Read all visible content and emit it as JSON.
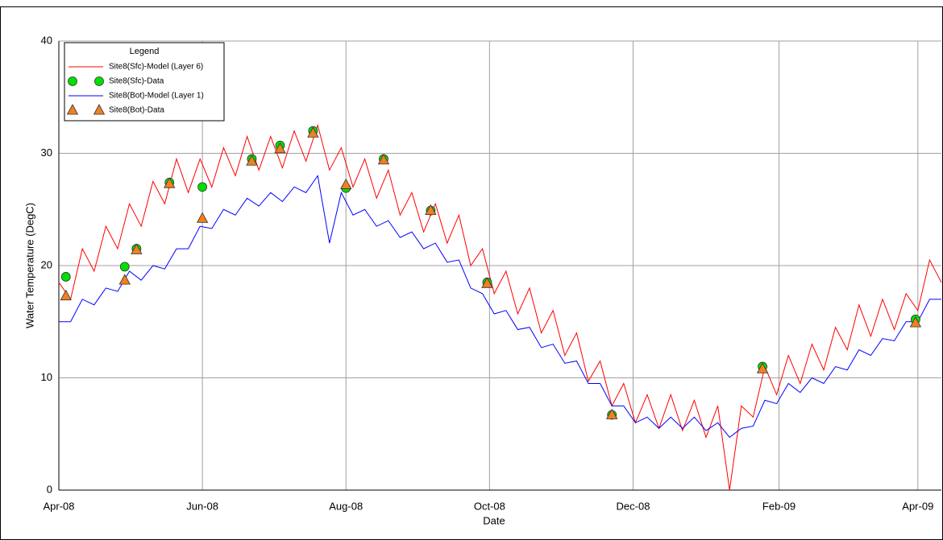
{
  "chart_data": {
    "type": "line",
    "xlabel": "Date",
    "ylabel": "Water Temperature (DegC)",
    "legend_title": "Legend",
    "legend": "upper left",
    "grid": true,
    "xlim": [
      0,
      375
    ],
    "ylim": [
      0,
      40
    ],
    "xticks": [
      {
        "value": 0,
        "label": "Apr-08"
      },
      {
        "value": 61,
        "label": "Jun-08"
      },
      {
        "value": 122,
        "label": "Aug-08"
      },
      {
        "value": 183,
        "label": "Oct-08"
      },
      {
        "value": 244,
        "label": "Dec-08"
      },
      {
        "value": 306,
        "label": "Feb-09"
      },
      {
        "value": 365,
        "label": "Apr-09"
      }
    ],
    "yticks": [
      0,
      10,
      20,
      30,
      40
    ],
    "series": [
      {
        "name": "Site8(Sfc)-Model (Layer 6)",
        "kind": "line",
        "color": "#ff0000",
        "x": [
          0,
          5,
          10,
          15,
          20,
          25,
          30,
          35,
          40,
          45,
          50,
          55,
          60,
          65,
          70,
          75,
          80,
          85,
          90,
          95,
          100,
          105,
          110,
          115,
          120,
          125,
          130,
          135,
          140,
          145,
          150,
          155,
          160,
          165,
          170,
          175,
          180,
          185,
          190,
          195,
          200,
          205,
          210,
          215,
          220,
          225,
          230,
          235,
          240,
          245,
          250,
          255,
          260,
          265,
          270,
          275,
          280,
          285,
          290,
          295,
          300,
          305,
          310,
          315,
          320,
          325,
          330,
          335,
          340,
          345,
          350,
          355,
          360,
          365,
          370,
          375
        ],
        "values": [
          18.5,
          17,
          21.5,
          19.5,
          23.5,
          21.5,
          25.5,
          23.5,
          27.5,
          25.5,
          29.5,
          26.5,
          29.5,
          27,
          30.5,
          28,
          31.5,
          28.5,
          31.5,
          28.7,
          32,
          29.3,
          32.5,
          28.5,
          30.5,
          27,
          29.5,
          26,
          28.5,
          24.5,
          26.5,
          23,
          25.5,
          22,
          24.5,
          20,
          21.5,
          17.5,
          19.5,
          15.7,
          18,
          14,
          16,
          12,
          14,
          9.7,
          11.5,
          7.5,
          9.5,
          6,
          8.5,
          5.5,
          8.5,
          5.3,
          8,
          4.7,
          7.5,
          0,
          7.5,
          6.5,
          11,
          8.5,
          12,
          9.5,
          13,
          10.7,
          14.5,
          12.5,
          16.5,
          13.7,
          17,
          14.3,
          17.5,
          16,
          20.5,
          18.5
        ]
      },
      {
        "name": "Site8(Sfc)-Data",
        "kind": "scatter",
        "marker": "circle",
        "color": "#00e000",
        "x": [
          3,
          28,
          33,
          47,
          61,
          82,
          94,
          108,
          122,
          138,
          158,
          182,
          235,
          299,
          364
        ],
        "values": [
          19.0,
          19.9,
          21.5,
          27.4,
          27.0,
          29.5,
          30.7,
          32.0,
          26.9,
          29.5,
          24.9,
          18.5,
          6.7,
          11.0,
          15.2
        ]
      },
      {
        "name": "Site8(Bot)-Model (Layer 1)",
        "kind": "line",
        "color": "#0000ff",
        "x": [
          0,
          5,
          10,
          15,
          20,
          25,
          30,
          35,
          40,
          45,
          50,
          55,
          60,
          65,
          70,
          75,
          80,
          85,
          90,
          95,
          100,
          105,
          110,
          115,
          120,
          125,
          130,
          135,
          140,
          145,
          150,
          155,
          160,
          165,
          170,
          175,
          180,
          185,
          190,
          195,
          200,
          205,
          210,
          215,
          220,
          225,
          230,
          235,
          240,
          245,
          250,
          255,
          260,
          265,
          270,
          275,
          280,
          285,
          290,
          295,
          300,
          305,
          310,
          315,
          320,
          325,
          330,
          335,
          340,
          345,
          350,
          355,
          360,
          365,
          370,
          375
        ],
        "values": [
          15,
          15,
          17,
          16.5,
          18,
          17.7,
          19.5,
          18.7,
          20,
          19.7,
          21.5,
          21.5,
          23.5,
          23.3,
          25,
          24.5,
          26,
          25.3,
          26.5,
          25.7,
          27,
          26.5,
          28,
          22,
          26.5,
          24.5,
          25,
          23.5,
          24,
          22.5,
          23,
          21.5,
          22,
          20.3,
          20.5,
          18,
          17.5,
          15.7,
          16,
          14.3,
          14.5,
          12.7,
          13,
          11.3,
          11.5,
          9.5,
          9.5,
          7.5,
          7.5,
          6,
          6.5,
          5.5,
          6.5,
          5.5,
          6.5,
          5.3,
          6,
          4.7,
          5.5,
          5.7,
          8,
          7.7,
          9.5,
          8.7,
          10,
          9.5,
          11,
          10.7,
          12.5,
          12,
          13.5,
          13.3,
          15,
          15,
          17,
          17
        ]
      },
      {
        "name": "Site8(Bot)-Data",
        "kind": "scatter",
        "marker": "triangle",
        "color": "#f08020",
        "x": [
          3,
          28,
          33,
          47,
          61,
          82,
          94,
          108,
          122,
          138,
          158,
          182,
          235,
          299,
          364
        ],
        "values": [
          17.3,
          18.7,
          21.4,
          27.3,
          24.2,
          29.3,
          30.4,
          31.8,
          27.2,
          29.4,
          24.9,
          18.4,
          6.7,
          10.8,
          14.9
        ]
      }
    ]
  }
}
